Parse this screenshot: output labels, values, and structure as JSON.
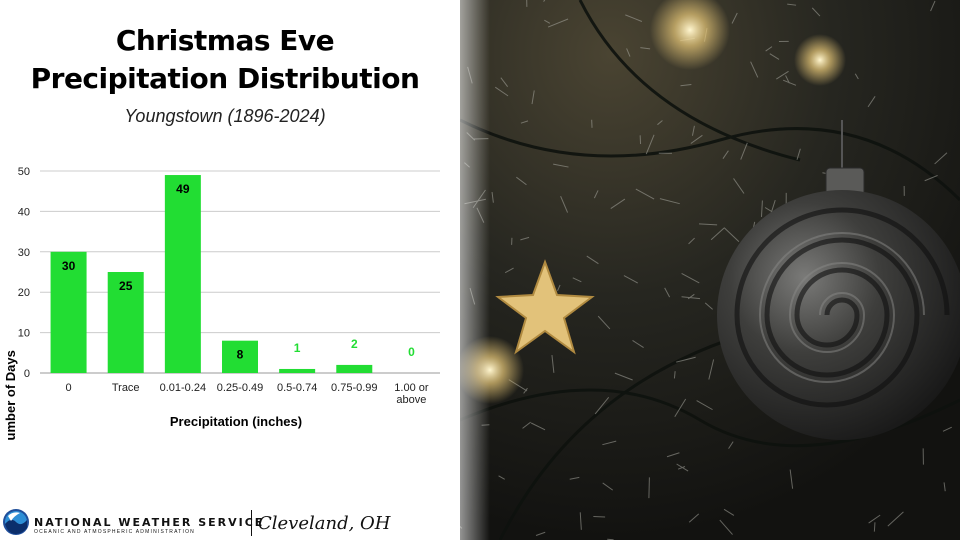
{
  "header": {
    "title_line1": "Christmas Eve",
    "title_line2": "Precipitation Distribution",
    "subtitle": "Youngstown (1896-2024)"
  },
  "footer": {
    "org": "NATIONAL WEATHER SERVICE",
    "org_sub": "OCEANIC AND ATMOSPHERIC ADMINISTRATION",
    "office": "Cleveland, OH"
  },
  "colors": {
    "bar": "#22dd33",
    "label_in": "#000000",
    "label_out": "#22dd33",
    "grid": "#cccccc"
  },
  "chart_data": {
    "type": "bar",
    "title": "",
    "xlabel": "Precipitation (inches)",
    "ylabel": "Number of Days",
    "ylim": [
      0,
      50
    ],
    "yticks": [
      0,
      10,
      20,
      30,
      40,
      50
    ],
    "grid": true,
    "categories": [
      [
        "0"
      ],
      [
        "Trace"
      ],
      [
        "0.01-0.24"
      ],
      [
        "0.25-0.49"
      ],
      [
        "0.5-0.74"
      ],
      [
        "0.75-0.99"
      ],
      [
        "1.00 or",
        "above"
      ]
    ],
    "values": [
      30,
      25,
      49,
      8,
      1,
      2,
      0
    ]
  }
}
